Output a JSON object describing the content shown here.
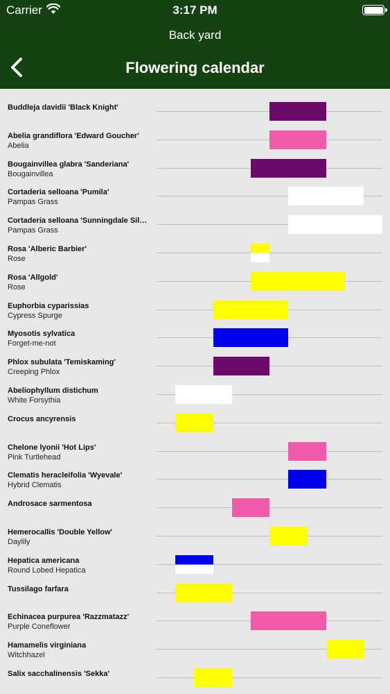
{
  "status_bar": {
    "carrier": "Carrier",
    "time": "3:17 PM"
  },
  "nav": {
    "subtitle": "Back yard",
    "title": "Flowering calendar"
  },
  "plants": [
    {
      "name": "Buddleja davidii 'Black Knight'",
      "common": "",
      "start": 6,
      "end": 9,
      "color": "#6c0a6c"
    },
    {
      "name": "Abelia  grandiflora 'Edward Goucher'",
      "common": "Abelia",
      "start": 6,
      "end": 9,
      "color": "#f15aa8"
    },
    {
      "name": "Bougainvillea glabra 'Sanderiana'",
      "common": "Bougainvillea",
      "start": 5,
      "end": 9,
      "color": "#6c0a6c"
    },
    {
      "name": "Cortaderia selloana  'Pumila'",
      "common": "Pampas Grass",
      "start": 7,
      "end": 11,
      "color": "#ffffff"
    },
    {
      "name": "Cortaderia selloana 'Sunningdale Silver'",
      "common": "Pampas Grass",
      "start": 7,
      "end": 12,
      "color": "#ffffff"
    },
    {
      "name": "Rosa 'Alberic Barbier'",
      "common": "Rose",
      "start": 5,
      "end": 6,
      "color": "#ffff00",
      "color2": "#ffffff"
    },
    {
      "name": "Rosa 'Allgold'",
      "common": "Rose",
      "start": 5,
      "end": 10,
      "color": "#ffff00"
    },
    {
      "name": "Euphorbia cyparissias",
      "common": "Cypress Spurge",
      "start": 3,
      "end": 7,
      "color": "#ffff00"
    },
    {
      "name": "Myosotis sylvatica",
      "common": "Forget-me-not",
      "start": 3,
      "end": 7,
      "color": "#0000ee"
    },
    {
      "name": "Phlox subulata 'Temiskaming'",
      "common": "Creeping Phlox",
      "start": 3,
      "end": 6,
      "color": "#6c0a6c"
    },
    {
      "name": "Abeliophyllum distichum",
      "common": "White Forsythia",
      "start": 1,
      "end": 4,
      "color": "#ffffff"
    },
    {
      "name": "Crocus ancyrensis",
      "common": "",
      "start": 1,
      "end": 3,
      "color": "#ffff00"
    },
    {
      "name": "Chelone lyonii 'Hot Lips'",
      "common": "Pink Turtlehead",
      "start": 7,
      "end": 9,
      "color": "#f15aa8"
    },
    {
      "name": "Clematis heracleifolia 'Wyevale'",
      "common": "Hybrid Clematis",
      "start": 7,
      "end": 9,
      "color": "#0000ee"
    },
    {
      "name": "Androsace sarmentosa",
      "common": "",
      "start": 4,
      "end": 6,
      "color": "#f15aa8"
    },
    {
      "name": "Hemerocallis 'Double Yellow'",
      "common": "Daylily",
      "start": 6,
      "end": 8,
      "color": "#ffff00"
    },
    {
      "name": "Hepatica americana",
      "common": "Round Lobed Hepatica",
      "start": 1,
      "end": 3,
      "color": "#0000ee",
      "color2": "#ffffff"
    },
    {
      "name": "Tussilago farfara",
      "common": "",
      "start": 1,
      "end": 4,
      "color": "#ffff00"
    },
    {
      "name": "Echinacea purpurea 'Razzmatazz'",
      "common": "Purple Coneflower",
      "start": 5,
      "end": 9,
      "color": "#f15aa8"
    },
    {
      "name": "Hamamelis virginiana",
      "common": "Witchhazel",
      "start": 9,
      "end": 11,
      "color": "#ffff00"
    },
    {
      "name": "Salix sacchalinensis 'Sekka'",
      "common": "",
      "start": 2,
      "end": 4,
      "color": "#ffff00"
    }
  ]
}
